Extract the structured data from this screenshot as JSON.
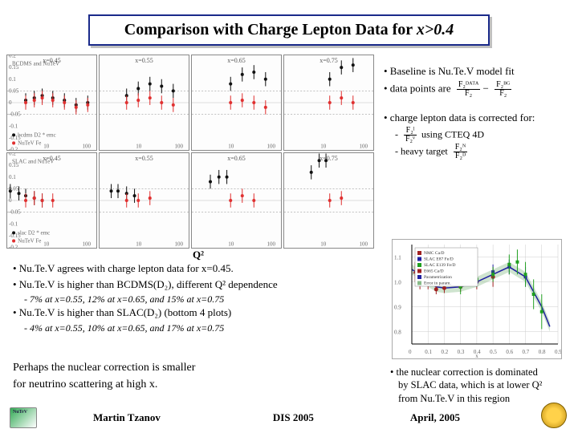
{
  "title": {
    "prefix": "Comparison with Charge Lepton Data for ",
    "italic": "x>0.4"
  },
  "upper_plots": {
    "row_label": "BCDMS and NuTeV",
    "legend": [
      "bcdms D2 * emc",
      "NuTeV Fe"
    ],
    "panels": [
      {
        "x_label": "x=0.45",
        "y_range": [
          -0.2,
          0.2
        ],
        "points_black": [
          [
            3,
            0.01
          ],
          [
            5,
            0.02
          ],
          [
            8,
            0.03
          ],
          [
            15,
            0.02
          ],
          [
            30,
            0.01
          ],
          [
            60,
            -0.01
          ],
          [
            120,
            0.0
          ]
        ],
        "points_red": [
          [
            3,
            0.0
          ],
          [
            5,
            0.01
          ],
          [
            8,
            0.02
          ],
          [
            15,
            0.01
          ],
          [
            30,
            0.0
          ],
          [
            60,
            -0.02
          ],
          [
            120,
            -0.01
          ]
        ]
      },
      {
        "x_label": "x=0.55",
        "points_black": [
          [
            5,
            0.03
          ],
          [
            10,
            0.06
          ],
          [
            20,
            0.08
          ],
          [
            40,
            0.07
          ],
          [
            80,
            0.05
          ]
        ],
        "points_red": [
          [
            5,
            0.0
          ],
          [
            10,
            0.01
          ],
          [
            20,
            0.02
          ],
          [
            40,
            0.0
          ],
          [
            80,
            -0.01
          ]
        ]
      },
      {
        "x_label": "x=0.65",
        "points_black": [
          [
            10,
            0.08
          ],
          [
            20,
            0.12
          ],
          [
            40,
            0.13
          ],
          [
            80,
            0.1
          ]
        ],
        "points_red": [
          [
            10,
            0.0
          ],
          [
            20,
            0.01
          ],
          [
            40,
            0.0
          ],
          [
            80,
            -0.02
          ]
        ]
      },
      {
        "x_label": "x=0.75",
        "points_black": [
          [
            15,
            0.1
          ],
          [
            30,
            0.15
          ],
          [
            60,
            0.16
          ]
        ],
        "points_red": [
          [
            15,
            0.0
          ],
          [
            30,
            0.02
          ],
          [
            60,
            0.0
          ]
        ]
      }
    ],
    "colors": {
      "black": "#111111",
      "red": "#e03030"
    }
  },
  "lower_plots": {
    "row_label": "SLAC and NuTeV",
    "legend": [
      "slac D2 * emc",
      "NuTeV Fe"
    ],
    "panels": [
      {
        "x_label": "x=0.45",
        "points_black": [
          [
            1.2,
            0.04
          ],
          [
            2,
            0.03
          ],
          [
            3,
            0.02
          ],
          [
            5,
            0.01
          ],
          [
            8,
            0.0
          ]
        ],
        "points_red": [
          [
            3,
            0.0
          ],
          [
            5,
            0.01
          ],
          [
            8,
            0.0
          ],
          [
            15,
            0.0
          ]
        ]
      },
      {
        "x_label": "x=0.55",
        "points_black": [
          [
            2,
            0.04
          ],
          [
            3,
            0.04
          ],
          [
            5,
            0.03
          ],
          [
            8,
            0.02
          ]
        ],
        "points_red": [
          [
            5,
            0.0
          ],
          [
            10,
            0.0
          ],
          [
            20,
            0.01
          ]
        ]
      },
      {
        "x_label": "x=0.65",
        "points_black": [
          [
            3,
            0.08
          ],
          [
            5,
            0.1
          ],
          [
            8,
            0.1
          ]
        ],
        "points_red": [
          [
            10,
            0.0
          ],
          [
            20,
            0.02
          ],
          [
            40,
            0.0
          ]
        ]
      },
      {
        "x_label": "x=0.75",
        "points_black": [
          [
            5,
            0.12
          ],
          [
            8,
            0.17
          ],
          [
            12,
            0.17
          ]
        ],
        "points_red": [
          [
            15,
            0.0
          ],
          [
            30,
            0.01
          ]
        ]
      }
    ]
  },
  "mini_plot_style": {
    "x_scale": "log",
    "x_range": [
      1,
      200
    ],
    "y_range": [
      -0.2,
      0.2
    ],
    "y_ticks": [
      -0.2,
      -0.15,
      -0.1,
      -0.05,
      0,
      0.05,
      0.1,
      0.15,
      0.2
    ],
    "x_ticks": [
      1,
      10,
      100
    ],
    "grid_color": "#dddddd",
    "marker_size": 2,
    "error_bar": 0.03
  },
  "q2_label": "Q²",
  "right_notes": {
    "line1": "• Baseline is Nu.Te.V model fit",
    "line2_prefix": "• data points are",
    "line2_frac_num": "F₂ᴰᴬᵀᴬ",
    "line2_frac_mid": "−",
    "line2_frac_num2": "F₂ᴮᴳ",
    "line2_frac_den": "F₂",
    "line3": "• charge lepton data is corrected for:",
    "sub1_label": "-",
    "sub1_frac_num": "F₂ˡ",
    "sub1_frac_den": "F₂ᵛ",
    "sub1_tail": "using CTEQ 4D",
    "sub2_label": "-  heavy target",
    "sub2_frac_num": "F₂ᴺ",
    "sub2_frac_den": "F₂ᴰ"
  },
  "bullets": {
    "b1": "• Nu.Te.V agrees with charge lepton data for x=0.45.",
    "b2": "• Nu.Te.V is higher than BCDMS(D₂), different Q² dependence",
    "b2sub": "- 7% at x=0.55,  12% at x=0.65,  and 15% at x=0.75",
    "b3": "• Nu.Te.V is higher than SLAC(D₂) (bottom 4 plots)",
    "b3sub": "- 4% at x=0.55,  10% at x=0.65,  and 17% at x=0.75"
  },
  "conclusion": {
    "l1": "Perhaps the nuclear correction is smaller",
    "l2": "for neutrino scattering at high x."
  },
  "right_chart": {
    "type": "scatter+line",
    "x_label": "x",
    "y_label": "",
    "x_range": [
      0,
      0.9
    ],
    "y_range": [
      0.75,
      1.15
    ],
    "x_ticks": [
      0,
      0.1,
      0.2,
      0.3,
      0.4,
      0.5,
      0.6,
      0.7,
      0.8,
      0.9
    ],
    "y_ticks": [
      0.8,
      0.9,
      1.0,
      1.1
    ],
    "curve_color": "#2020a0",
    "curve": [
      [
        0.0,
        1.05
      ],
      [
        0.05,
        1.03
      ],
      [
        0.1,
        1.0
      ],
      [
        0.15,
        0.98
      ],
      [
        0.2,
        0.975
      ],
      [
        0.3,
        0.98
      ],
      [
        0.4,
        1.0
      ],
      [
        0.5,
        1.03
      ],
      [
        0.6,
        1.06
      ],
      [
        0.7,
        1.02
      ],
      [
        0.8,
        0.9
      ],
      [
        0.85,
        0.82
      ]
    ],
    "series": [
      {
        "name": "NMC Ca/D",
        "color": "#a02020",
        "marker": "circle",
        "points": [
          [
            0.05,
            1.02,
            0.03
          ],
          [
            0.1,
            0.99,
            0.02
          ],
          [
            0.15,
            0.97,
            0.02
          ],
          [
            0.2,
            0.975,
            0.02
          ],
          [
            0.3,
            0.98,
            0.02
          ],
          [
            0.4,
            1.0,
            0.03
          ],
          [
            0.5,
            1.02,
            0.04
          ]
        ]
      },
      {
        "name": "SLAC E87 Fe/D",
        "color": "#2020a0",
        "marker": "square",
        "points": [
          [
            0.3,
            0.99,
            0.02
          ],
          [
            0.4,
            1.0,
            0.02
          ],
          [
            0.5,
            1.04,
            0.03
          ],
          [
            0.6,
            1.06,
            0.03
          ],
          [
            0.7,
            1.02,
            0.04
          ]
        ]
      },
      {
        "name": "SLAC E139 Fe/D",
        "color": "#20a020",
        "marker": "square",
        "points": [
          [
            0.3,
            0.98,
            0.03
          ],
          [
            0.4,
            1.01,
            0.03
          ],
          [
            0.5,
            1.03,
            0.03
          ],
          [
            0.6,
            1.07,
            0.04
          ],
          [
            0.65,
            1.08,
            0.05
          ],
          [
            0.7,
            1.03,
            0.05
          ],
          [
            0.75,
            0.95,
            0.06
          ],
          [
            0.8,
            0.88,
            0.07
          ]
        ]
      },
      {
        "name": "E665 Ca/D",
        "color": "#a02020",
        "marker": "triangle",
        "points": [
          [
            0.02,
            1.04,
            0.04
          ],
          [
            0.05,
            1.0,
            0.03
          ]
        ]
      }
    ],
    "legend_labels": [
      "NMC Ca/D",
      "SLAC E87 Fe/D",
      "SLAC E139 Fe/D",
      "E665 Ca/D",
      "Parametrization",
      "Error in param."
    ],
    "legend_colors": [
      "#a02020",
      "#2020a0",
      "#20a020",
      "#a02020",
      "#2020a0",
      "#88bb88"
    ],
    "background": "#ffffff",
    "grid_color": "#cccccc"
  },
  "right_bullet": {
    "l1": "• the nuclear correction is dominated",
    "l2": "by SLAC data, which is at lower Q²",
    "l3": "from Nu.Te.V in this region"
  },
  "footer": {
    "name": "Martin Tzanov",
    "conf": "DIS 2005",
    "date": "April, 2005"
  }
}
